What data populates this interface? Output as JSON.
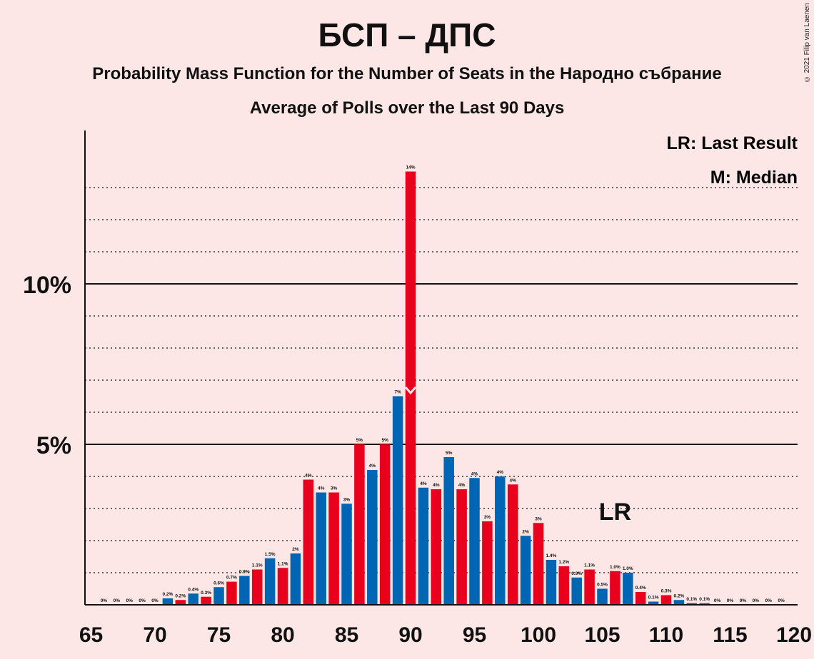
{
  "title": "БСП – ДПС",
  "subtitle": "Probability Mass Function for the Number of Seats in the Народно събрание",
  "subtitle2": "Average of Polls over the Last 90 Days",
  "copyright": "© 2021 Filip van Laenen",
  "legend": {
    "last_result": "LR: Last Result",
    "median": "M: Median"
  },
  "markers": {
    "last_result_label": "LR",
    "last_result_seat": 106,
    "median_seat": 90
  },
  "colors": {
    "blue": "#0066b3",
    "red": "#e8001c",
    "background": "#fde6e6"
  },
  "chart_data": {
    "type": "bar",
    "xlim": [
      65,
      120
    ],
    "ylim": [
      0,
      14.5
    ],
    "x_ticks": [
      65,
      70,
      75,
      80,
      85,
      90,
      95,
      100,
      105,
      110,
      115,
      120
    ],
    "y_ticks": [
      {
        "value": 5,
        "label": "5%"
      },
      {
        "value": 10,
        "label": "10%"
      }
    ],
    "grid": "dotted every 1%, solid at 5% and 10%",
    "x": [
      66,
      67,
      68,
      69,
      70,
      71,
      72,
      73,
      74,
      75,
      76,
      77,
      78,
      79,
      80,
      81,
      82,
      83,
      84,
      85,
      86,
      87,
      88,
      89,
      90,
      91,
      92,
      93,
      94,
      95,
      96,
      97,
      98,
      99,
      100,
      101,
      102,
      103,
      104,
      105,
      106,
      107,
      108,
      109,
      110,
      111,
      112,
      113,
      114,
      115,
      116,
      117,
      118,
      119
    ],
    "values": [
      0,
      0,
      0,
      0,
      0,
      0.2,
      0.15,
      0.35,
      0.25,
      0.55,
      0.72,
      0.9,
      1.1,
      1.45,
      1.15,
      1.6,
      3.9,
      3.5,
      3.5,
      3.15,
      5.0,
      4.2,
      5.0,
      6.5,
      13.5,
      3.65,
      3.6,
      4.6,
      3.6,
      3.95,
      2.6,
      4.0,
      3.75,
      2.15,
      2.55,
      1.4,
      1.2,
      0.85,
      1.1,
      0.5,
      1.05,
      1.0,
      0.4,
      0.1,
      0.3,
      0.15,
      0.05,
      0.05,
      0,
      0,
      0,
      0,
      0,
      0
    ],
    "labels": [
      "0%",
      "0%",
      "0%",
      "0%",
      "0%",
      "0.2%",
      "0.2%",
      "0.4%",
      "0.3%",
      "0.6%",
      "0.7%",
      "0.9%",
      "1.1%",
      "1.5%",
      "1.1%",
      "2%",
      "4%",
      "4%",
      "3%",
      "3%",
      "5%",
      "4%",
      "5%",
      "7%",
      "14%",
      "4%",
      "4%",
      "5%",
      "4%",
      "4%",
      "3%",
      "4%",
      "4%",
      "2%",
      "3%",
      "1.4%",
      "1.2%",
      "0.9%",
      "1.1%",
      "0.5%",
      "1.0%",
      "1.0%",
      "0.4%",
      "0.1%",
      "0.3%",
      "0.2%",
      "0.1%",
      "0.1%",
      "0%",
      "0%",
      "0%",
      "0%",
      "0%",
      "0%"
    ]
  }
}
